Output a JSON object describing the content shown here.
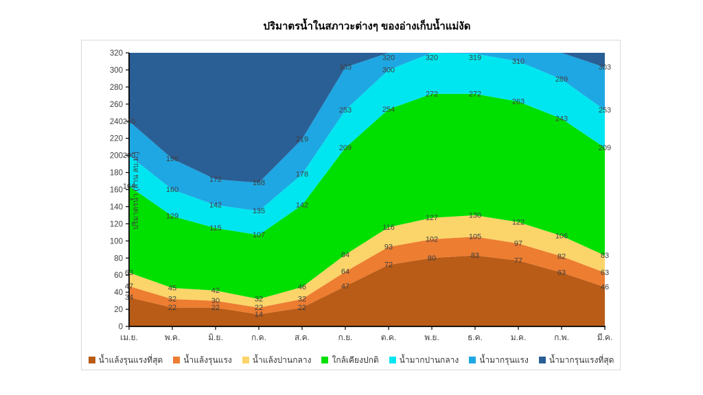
{
  "title": "ปริมาตรน้ำในสภาวะต่างๆ ของอ่างเก็บน้ำแม่งัด",
  "y_axis": {
    "label": "ปริมาตรน้ำ (ล้าน ลบ.ม.)",
    "min": 0,
    "max": 320,
    "ticks": [
      0,
      20,
      40,
      60,
      80,
      100,
      120,
      140,
      160,
      180,
      200,
      220,
      240,
      260,
      280,
      300,
      320
    ]
  },
  "x_axis": {
    "categories": [
      "เม.ย.",
      "พ.ค.",
      "มิ.ย.",
      "ก.ค.",
      "ส.ค.",
      "ก.ย.",
      "ต.ค.",
      "พ.ย.",
      "ธ.ค.",
      "ม.ค.",
      "ก.พ.",
      "มี.ค."
    ]
  },
  "chart_data": {
    "type": "area",
    "stacked": true,
    "title": "ปริมาตรน้ำในสภาวะต่างๆ ของอ่างเก็บน้ำแม่งัด",
    "xlabel": "",
    "ylabel": "ปริมาตรน้ำ (ล้าน ลบ.ม.)",
    "ylim": [
      0,
      320
    ],
    "grid": false,
    "legend_position": "bottom",
    "categories": [
      "เม.ย.",
      "พ.ค.",
      "มิ.ย.",
      "ก.ค.",
      "ส.ค.",
      "ก.ย.",
      "ต.ค.",
      "พ.ย.",
      "ธ.ค.",
      "ม.ค.",
      "ก.พ.",
      "มี.ค."
    ],
    "series_note": "cumulative_top = labeled upper boundary of each stacked band; null = boundary above axis max (label not shown); topmost band fills to 320",
    "series": [
      {
        "name": "น้ำแล้งรุนแรงที่สุด",
        "color": "#B85C17",
        "cumulative_top": [
          34,
          22,
          22,
          14,
          22,
          47,
          72,
          80,
          83,
          77,
          63,
          46
        ]
      },
      {
        "name": "น้ำแล้งรุนแรง",
        "color": "#ED7D31",
        "cumulative_top": [
          47,
          32,
          30,
          22,
          32,
          64,
          93,
          102,
          105,
          97,
          82,
          63
        ]
      },
      {
        "name": "น้ำแล้งปานกลาง",
        "color": "#FBD46A",
        "cumulative_top": [
          63,
          45,
          42,
          32,
          46,
          84,
          116,
          127,
          130,
          122,
          106,
          83
        ]
      },
      {
        "name": "ใกล้เคียงปกติ",
        "color": "#00E000",
        "cumulative_top": [
          164,
          129,
          115,
          107,
          142,
          209,
          254,
          272,
          272,
          263,
          243,
          209
        ]
      },
      {
        "name": "น้ำมากปานกลาง",
        "color": "#00E6F0",
        "cumulative_top": [
          200,
          160,
          142,
          135,
          178,
          253,
          300,
          320,
          319,
          310,
          289,
          253
        ]
      },
      {
        "name": "น้ำมากรุนแรง",
        "color": "#1EA7E3",
        "cumulative_top": [
          240,
          196,
          172,
          168,
          219,
          303,
          320,
          null,
          null,
          null,
          null,
          303
        ]
      },
      {
        "name": "น้ำมากรุนแรงที่สุด",
        "color": "#2A5F96",
        "cumulative_top": [
          null,
          null,
          null,
          null,
          null,
          null,
          null,
          null,
          null,
          null,
          null,
          null
        ]
      }
    ]
  },
  "colors": {
    "axis": "#000000",
    "tick_label": "#404040",
    "data_label": "#3F3F3F",
    "panel_border": "#D9D9D9"
  }
}
